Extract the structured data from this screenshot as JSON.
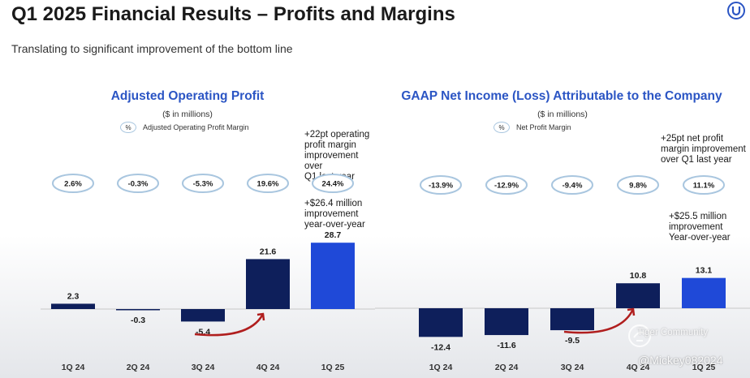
{
  "slide": {
    "title": "Q1 2025 Financial Results – Profits and Margins",
    "subtitle": "Translating to significant improvement of the bottom line"
  },
  "watermark": {
    "brand": "Tiger Community",
    "user": "@Mickey082024"
  },
  "colors": {
    "bar_dark": "#0e1f5b",
    "bar_highlight": "#1f49d8",
    "title_blue": "#2b55c4",
    "pill_border": "#a9c6df",
    "arrow": "#b01e1e"
  },
  "chart_data": [
    {
      "type": "bar",
      "title": "Adjusted Operating Profit",
      "unit": "($ in millions)",
      "legend": {
        "symbol": "%",
        "label": "Adjusted Operating Profit Margin"
      },
      "categories": [
        "1Q 24",
        "2Q 24",
        "3Q 24",
        "4Q 24",
        "1Q 25"
      ],
      "values": [
        2.3,
        -0.3,
        -5.4,
        21.6,
        28.7
      ],
      "value_labels": [
        "2.3",
        "-0.3",
        "-5.4",
        "21.6",
        "28.7"
      ],
      "margins": [
        "2.6%",
        "-0.3%",
        "-5.3%",
        "19.6%",
        "24.4%"
      ],
      "highlight_index": 4,
      "notes": [
        [
          "+22pt operating",
          "profit margin",
          "improvement over",
          "Q1 last year"
        ],
        [
          "+$26.4 million",
          "improvement",
          "year-over-year"
        ]
      ]
    },
    {
      "type": "bar",
      "title": "GAAP Net Income (Loss) Attributable to the Company",
      "unit": "($ in millions)",
      "legend": {
        "symbol": "%",
        "label": "Net Profit Margin"
      },
      "categories": [
        "1Q 24",
        "2Q 24",
        "3Q 24",
        "4Q 24",
        "1Q 25"
      ],
      "values": [
        -12.4,
        -11.6,
        -9.5,
        10.8,
        13.1
      ],
      "value_labels": [
        "-12.4",
        "-11.6",
        "-9.5",
        "10.8",
        "13.1"
      ],
      "margins": [
        "-13.9%",
        "-12.9%",
        "-9.4%",
        "9.8%",
        "11.1%"
      ],
      "highlight_index": 4,
      "notes": [
        [
          "+25pt net profit",
          "margin improvement",
          "over Q1 last year"
        ],
        [
          "+$25.5 million",
          "improvement",
          "Year-over-year"
        ]
      ]
    }
  ]
}
